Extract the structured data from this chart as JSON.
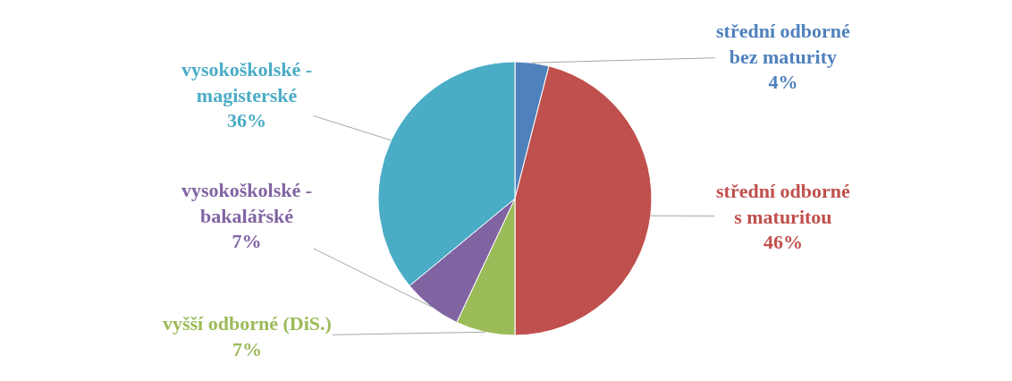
{
  "chart_data": {
    "type": "pie",
    "categories": [
      "střední odborné\nbez maturity",
      "střední odborné\ns maturitou",
      "vyšší odborné (DiS.)",
      "vysokoškolské -\nbakalářské",
      "vysokoškolské -\nmagisterské"
    ],
    "values": [
      4,
      46,
      7,
      7,
      36
    ],
    "value_labels": [
      "4%",
      "46%",
      "7%",
      "7%",
      "36%"
    ],
    "colors": [
      "#4f81bd",
      "#c0504d",
      "#9bbb59",
      "#8064a2",
      "#4bacc6"
    ],
    "legend": false
  }
}
